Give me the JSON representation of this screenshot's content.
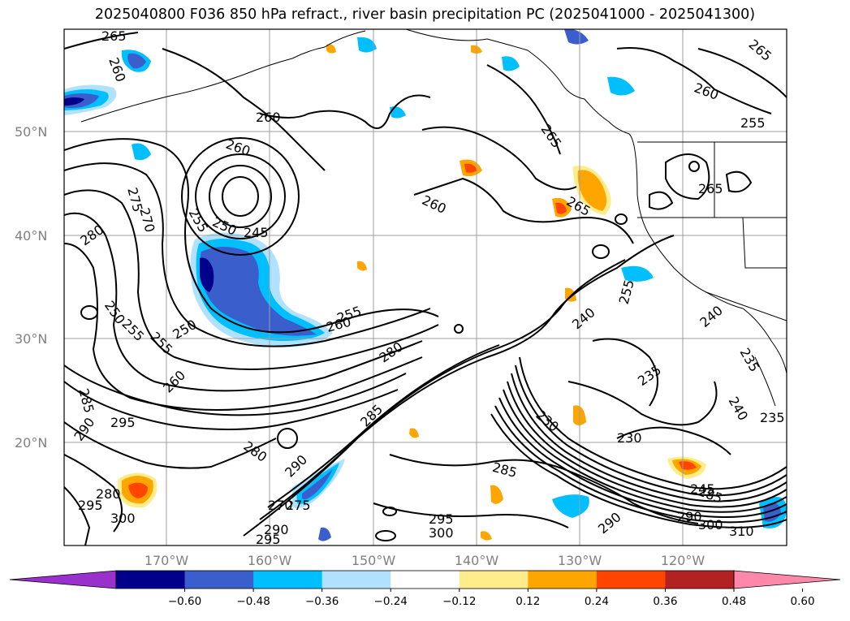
{
  "title": "2025040800 F036 850 hPa refract., river basin precipitation PC (2025041000 - 2025041300)",
  "latitude_labels": [
    "50°N",
    "40°N",
    "30°N",
    "20°N"
  ],
  "longitude_labels": [
    "170°W",
    "160°W",
    "150°W",
    "140°W",
    "130°W",
    "120°W"
  ],
  "colorbar": {
    "colors": [
      "#9932cc",
      "#00008b",
      "#3a5fcd",
      "#00bfff",
      "#b0e2ff",
      "#ffffff",
      "#ffec8b",
      "#ffa500",
      "#ff4500",
      "#b22222",
      "#ff88aa"
    ],
    "tick_labels": [
      "−0.60",
      "−0.48",
      "−0.36",
      "−0.24",
      "−0.12",
      "0.12",
      "0.24",
      "0.36",
      "0.48",
      "0.60"
    ]
  },
  "contour_labels": [
    "265",
    "260",
    "260",
    "260",
    "255",
    "265",
    "260",
    "265",
    "265",
    "260",
    "255",
    "250",
    "245",
    "265",
    "280",
    "275",
    "270",
    "250",
    "255",
    "250",
    "255",
    "260",
    "255",
    "260",
    "280",
    "255",
    "240",
    "235",
    "230",
    "235",
    "240",
    "285",
    "295",
    "290",
    "280",
    "290",
    "285",
    "270",
    "275",
    "280",
    "285",
    "290",
    "295",
    "300",
    "290",
    "285",
    "290",
    "295",
    "300",
    "310",
    "300",
    "295",
    "230",
    "240",
    "245",
    "235"
  ]
}
